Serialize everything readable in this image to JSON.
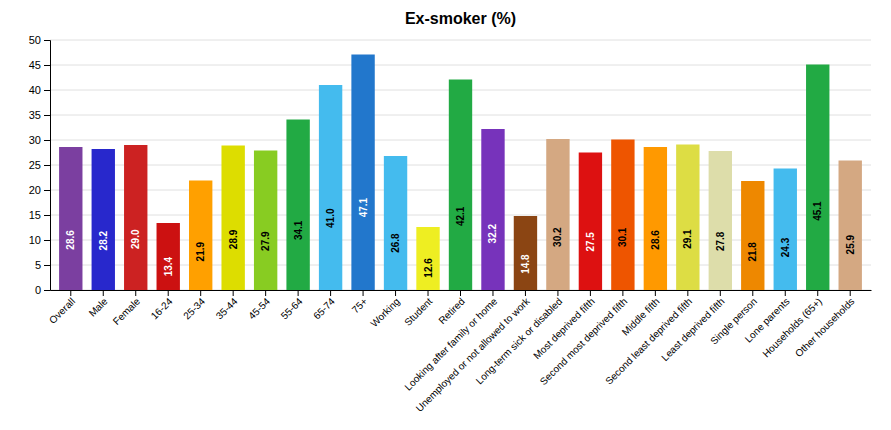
{
  "chart_data": {
    "type": "bar",
    "title": "Ex-smoker (%)",
    "categories": [
      "Overall",
      "Male",
      "Female",
      "16-24",
      "25-34",
      "35-44",
      "45-54",
      "55-64",
      "65-74",
      "75+",
      "Working",
      "Student",
      "Retired",
      "Looking after family or home",
      "Unemployed or not allowed to work",
      "Long-term sick or disabled",
      "Most deprived fifth",
      "Second most deprived fifth",
      "Middle fifth",
      "Second least deprived fifth",
      "Least deprived fifth",
      "Single person",
      "Lone parents",
      "Households (65+)",
      "Other households"
    ],
    "values": [
      28.6,
      28.2,
      29.0,
      13.4,
      21.9,
      28.9,
      27.9,
      34.1,
      41.0,
      47.1,
      26.8,
      12.6,
      42.1,
      32.2,
      14.8,
      30.2,
      27.5,
      30.1,
      28.6,
      29.1,
      27.8,
      21.8,
      24.3,
      45.1,
      25.9
    ],
    "value_labels": [
      "28.6",
      "28.2",
      "29.0",
      "13.4",
      "21.9",
      "28.9",
      "27.9",
      "34.1",
      "41.0",
      "47.1",
      "26.8",
      "12.6",
      "42.1",
      "32.2",
      "14.8",
      "30.2",
      "27.5",
      "30.1",
      "28.6",
      "29.1",
      "27.8",
      "21.8",
      "24.3",
      "45.1",
      "25.9"
    ],
    "colors": [
      "#7B3FA0",
      "#2828CC",
      "#CC2222",
      "#CC1111",
      "#FFA000",
      "#DDDD00",
      "#88CC22",
      "#22AA44",
      "#44BBEE",
      "#2277CC",
      "#44BBEE",
      "#EEEE22",
      "#22AA44",
      "#7733BB",
      "#8B4513",
      "#D4A882",
      "#DD1111",
      "#EE5500",
      "#FF9900",
      "#DDDD44",
      "#DDDDAA",
      "#EE8800",
      "#44BBEE",
      "#22AA44",
      "#D4A882"
    ],
    "ylim": [
      0,
      50
    ],
    "yticks": [
      0,
      5,
      10,
      15,
      20,
      25,
      30,
      35,
      40,
      45,
      50
    ],
    "grid": true,
    "data_labels": true
  }
}
